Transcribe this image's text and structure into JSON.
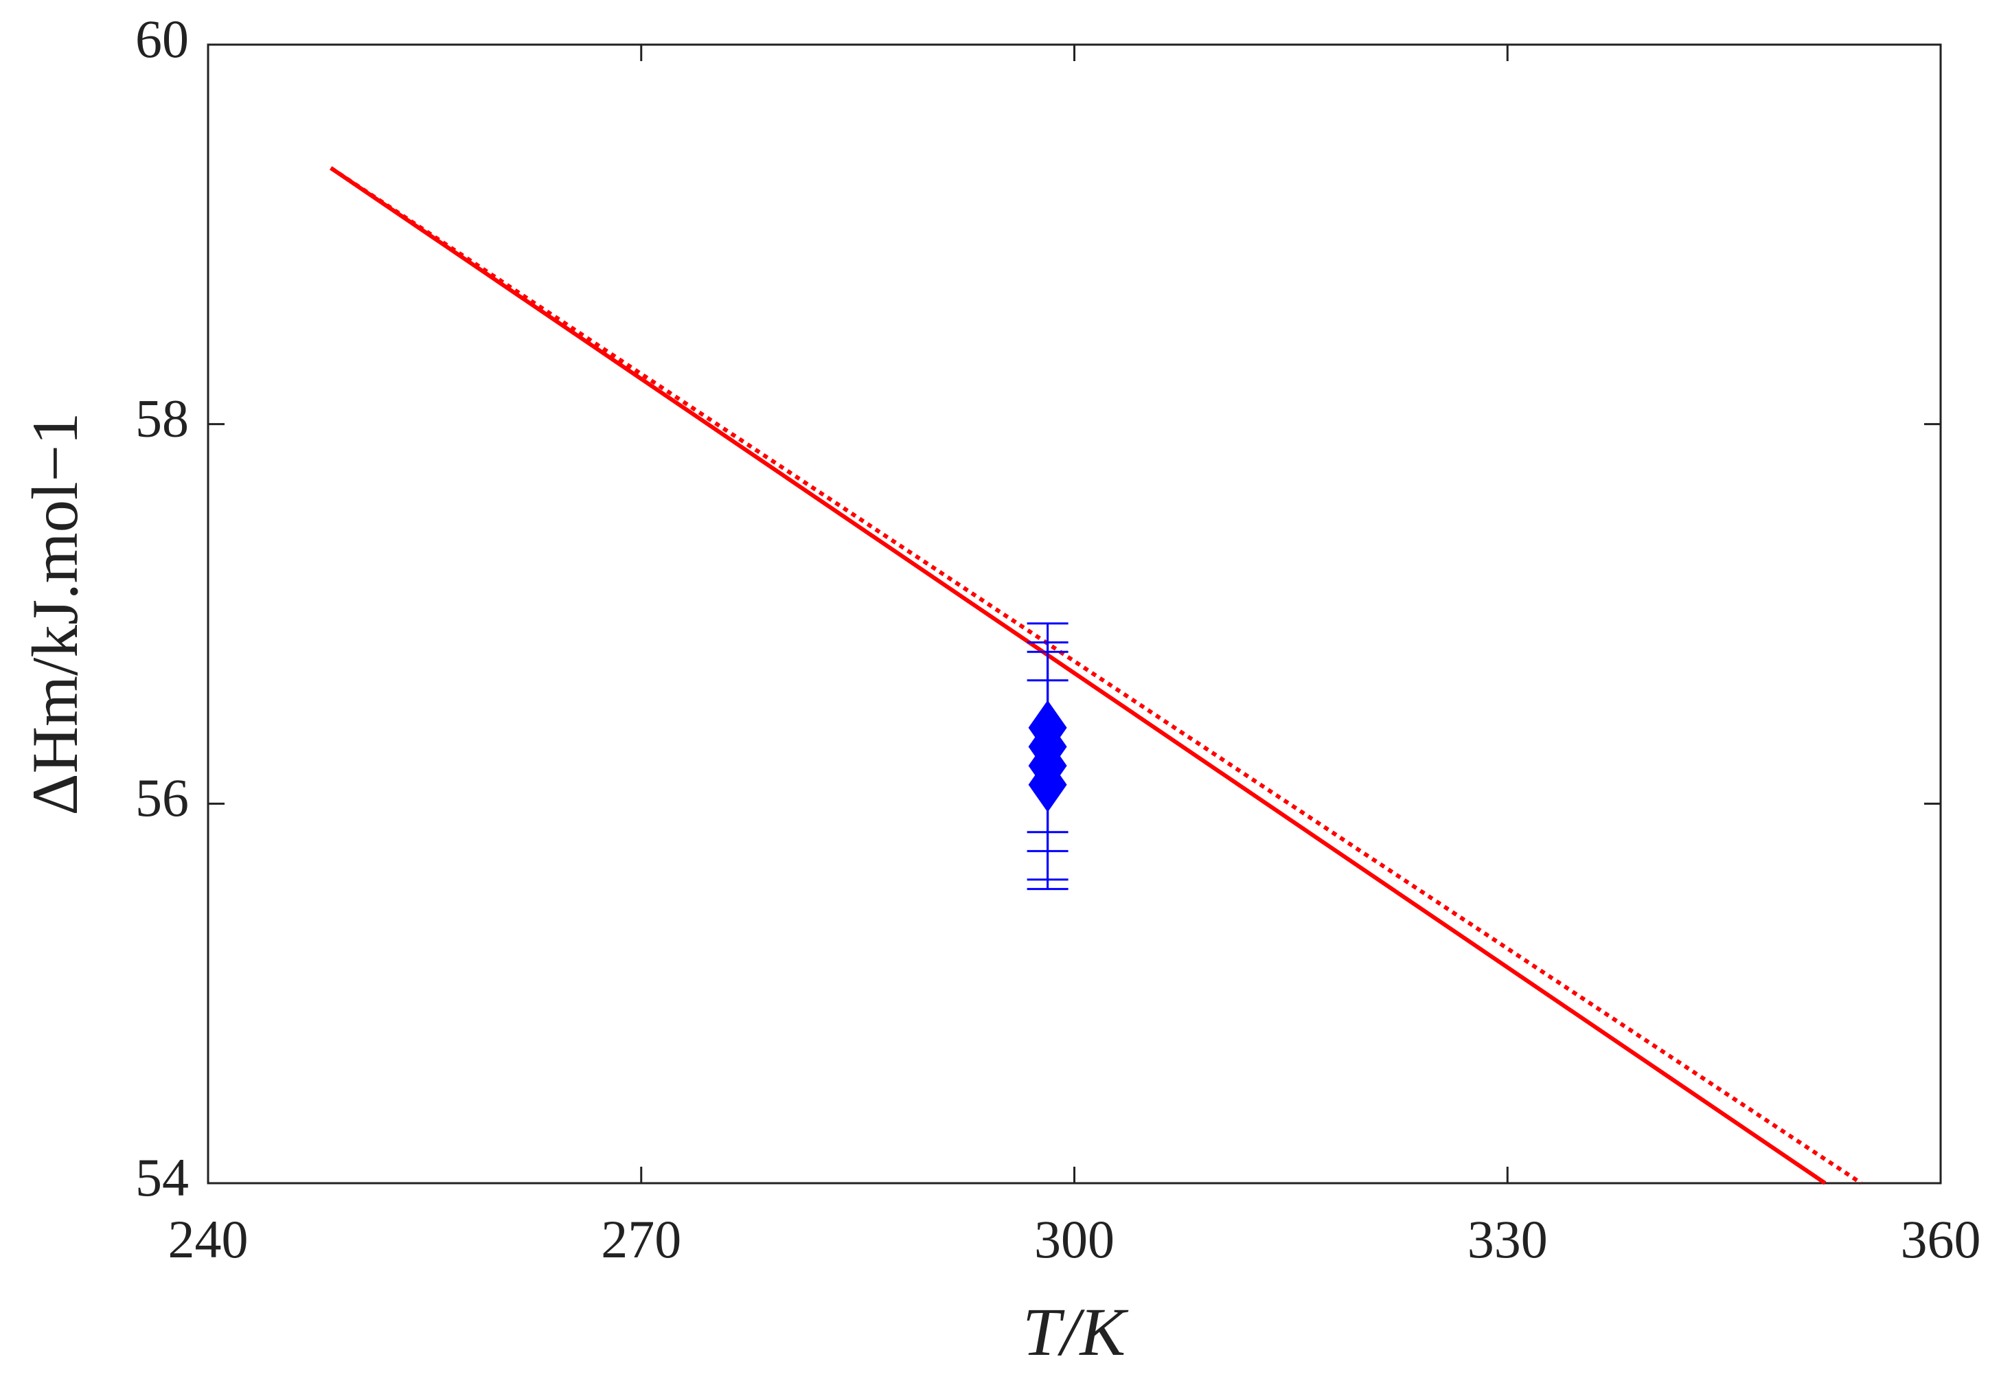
{
  "chart_data": {
    "type": "line",
    "xlabel": "T/K",
    "ylabel": "ΔHm/kJ.mol−1",
    "xlim": [
      240,
      360
    ],
    "ylim": [
      54,
      60
    ],
    "xticks": [
      240,
      270,
      300,
      330,
      360
    ],
    "yticks": [
      54,
      56,
      58,
      60
    ],
    "series": [
      {
        "color": "#ff0000",
        "style": "solid",
        "x": [
          248.5,
          352
        ],
        "values": [
          59.35,
          54
        ]
      },
      {
        "color": "#ff0000",
        "style": "dotted",
        "x": [
          248.5,
          354.5
        ],
        "values": [
          59.35,
          54
        ]
      },
      {
        "color": "#0000ff",
        "style": "markers",
        "marker": "diamond",
        "x": [
          298.15,
          298.15,
          298.15,
          298.15
        ],
        "values": [
          56.1,
          56.2,
          56.3,
          56.4
        ],
        "errors": [
          0.55,
          0.6,
          0.55,
          0.55
        ]
      }
    ]
  }
}
